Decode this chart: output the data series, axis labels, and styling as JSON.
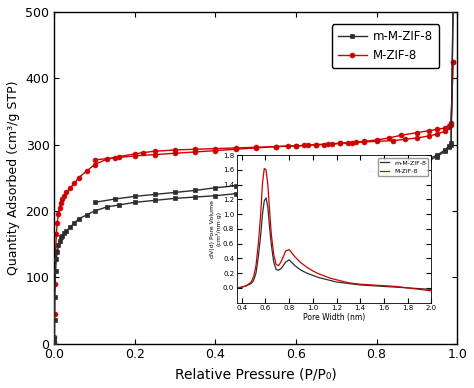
{
  "xlabel": "Relative Pressure (P/P₀)",
  "ylabel": "Quantity Adsorbed (cm³/g STP)",
  "xlim": [
    0,
    1.0
  ],
  "ylim": [
    0,
    500
  ],
  "yticks": [
    0,
    100,
    200,
    300,
    400,
    500
  ],
  "xticks": [
    0.0,
    0.2,
    0.4,
    0.6,
    0.8,
    1.0
  ],
  "mMZIF8_adsorption_x": [
    1e-06,
    5e-05,
    0.0001,
    0.0005,
    0.001,
    0.003,
    0.005,
    0.007,
    0.01,
    0.013,
    0.016,
    0.02,
    0.025,
    0.03,
    0.04,
    0.05,
    0.06,
    0.08,
    0.1,
    0.13,
    0.16,
    0.2,
    0.25,
    0.3,
    0.35,
    0.4,
    0.45,
    0.5,
    0.55,
    0.6,
    0.63,
    0.65,
    0.67,
    0.69,
    0.71,
    0.73,
    0.75,
    0.77,
    0.8,
    0.83,
    0.86,
    0.9,
    0.93,
    0.95,
    0.97,
    0.98,
    0.985,
    0.99
  ],
  "mMZIF8_adsorption_y": [
    0,
    2,
    8,
    35,
    70,
    110,
    128,
    138,
    148,
    155,
    160,
    163,
    167,
    170,
    176,
    182,
    188,
    194,
    200,
    206,
    209,
    213,
    216,
    219,
    221,
    223,
    226,
    228,
    231,
    233,
    235,
    237,
    238,
    240,
    242,
    244,
    246,
    248,
    252,
    255,
    260,
    270,
    279,
    284,
    292,
    298,
    300,
    505
  ],
  "mMZIF8_desorption_x": [
    0.99,
    0.985,
    0.98,
    0.97,
    0.95,
    0.93,
    0.9,
    0.87,
    0.84,
    0.8,
    0.77,
    0.74,
    0.71,
    0.68,
    0.65,
    0.62,
    0.6,
    0.58,
    0.55,
    0.5,
    0.45,
    0.4,
    0.35,
    0.3,
    0.25,
    0.2,
    0.15,
    0.1
  ],
  "mMZIF8_desorption_y": [
    505,
    302,
    296,
    290,
    282,
    276,
    271,
    267,
    263,
    260,
    258,
    256,
    253,
    252,
    250,
    248,
    247,
    246,
    244,
    241,
    238,
    235,
    231,
    228,
    225,
    222,
    218,
    213
  ],
  "MZIF8_adsorption_x": [
    1e-06,
    5e-05,
    0.0001,
    0.0005,
    0.001,
    0.003,
    0.005,
    0.007,
    0.01,
    0.013,
    0.016,
    0.02,
    0.025,
    0.03,
    0.04,
    0.05,
    0.06,
    0.08,
    0.1,
    0.13,
    0.16,
    0.2,
    0.22,
    0.25,
    0.3,
    0.35,
    0.4,
    0.45,
    0.5,
    0.55,
    0.6,
    0.63,
    0.65,
    0.67,
    0.69,
    0.71,
    0.73,
    0.75,
    0.77,
    0.8,
    0.83,
    0.86,
    0.9,
    0.93,
    0.95,
    0.97,
    0.98,
    0.985,
    0.99
  ],
  "MZIF8_adsorption_y": [
    0,
    3,
    10,
    45,
    90,
    140,
    165,
    182,
    195,
    205,
    212,
    218,
    223,
    228,
    235,
    242,
    250,
    260,
    270,
    278,
    282,
    286,
    288,
    290,
    292,
    293,
    294,
    295,
    296,
    297,
    298,
    299,
    300,
    300,
    301,
    302,
    303,
    304,
    305,
    307,
    310,
    314,
    318,
    321,
    323,
    325,
    328,
    330,
    425
  ],
  "MZIF8_desorption_x": [
    0.99,
    0.985,
    0.98,
    0.97,
    0.95,
    0.93,
    0.9,
    0.87,
    0.84,
    0.8,
    0.77,
    0.74,
    0.71,
    0.68,
    0.65,
    0.62,
    0.6,
    0.58,
    0.55,
    0.5,
    0.45,
    0.4,
    0.35,
    0.3,
    0.25,
    0.2,
    0.15,
    0.1
  ],
  "MZIF8_desorption_y": [
    425,
    332,
    326,
    320,
    316,
    313,
    310,
    308,
    306,
    305,
    304,
    303,
    302,
    301,
    300,
    299,
    298,
    298,
    297,
    295,
    293,
    291,
    289,
    287,
    285,
    283,
    280,
    277
  ],
  "inset_mMZIF8_x": [
    0.36,
    0.4,
    0.44,
    0.48,
    0.5,
    0.52,
    0.54,
    0.56,
    0.575,
    0.59,
    0.605,
    0.62,
    0.635,
    0.65,
    0.67,
    0.69,
    0.71,
    0.73,
    0.75,
    0.77,
    0.8,
    0.85,
    0.9,
    0.95,
    1.0,
    1.05,
    1.1,
    1.15,
    1.2,
    1.25,
    1.3,
    1.4,
    1.5,
    1.6,
    1.7,
    1.8,
    1.9,
    2.0
  ],
  "inset_mMZIF8_y": [
    0.0,
    0.01,
    0.03,
    0.06,
    0.1,
    0.2,
    0.42,
    0.72,
    1.0,
    1.18,
    1.22,
    1.1,
    0.82,
    0.58,
    0.35,
    0.25,
    0.24,
    0.26,
    0.3,
    0.35,
    0.38,
    0.3,
    0.24,
    0.2,
    0.17,
    0.14,
    0.12,
    0.1,
    0.08,
    0.07,
    0.06,
    0.04,
    0.03,
    0.02,
    0.01,
    0.0,
    -0.01,
    -0.02
  ],
  "inset_MZIF8_x": [
    0.36,
    0.4,
    0.44,
    0.48,
    0.5,
    0.52,
    0.54,
    0.56,
    0.575,
    0.59,
    0.605,
    0.62,
    0.635,
    0.65,
    0.67,
    0.69,
    0.71,
    0.73,
    0.75,
    0.77,
    0.8,
    0.85,
    0.9,
    0.95,
    1.0,
    1.05,
    1.1,
    1.15,
    1.2,
    1.25,
    1.3,
    1.4,
    1.5,
    1.6,
    1.7,
    1.8,
    1.9,
    2.0
  ],
  "inset_MZIF8_y": [
    0.0,
    0.01,
    0.03,
    0.08,
    0.15,
    0.3,
    0.6,
    1.0,
    1.42,
    1.62,
    1.6,
    1.4,
    1.05,
    0.72,
    0.45,
    0.32,
    0.3,
    0.35,
    0.42,
    0.5,
    0.52,
    0.42,
    0.34,
    0.28,
    0.23,
    0.19,
    0.16,
    0.13,
    0.11,
    0.09,
    0.07,
    0.05,
    0.04,
    0.03,
    0.02,
    0.0,
    -0.02,
    -0.04
  ],
  "mMZIF8_color": "#2d2d2d",
  "MZIF8_color": "#cc0000",
  "marker_size": 3.5,
  "line_width": 1.0
}
